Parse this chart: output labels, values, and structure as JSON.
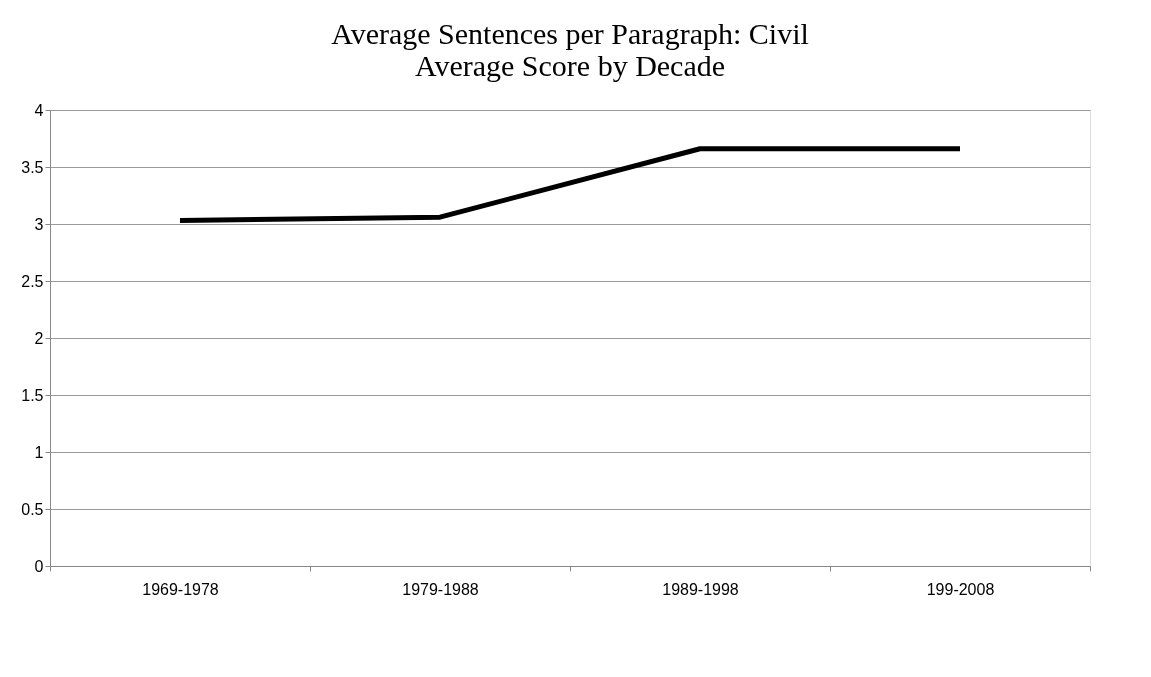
{
  "chart_data": {
    "type": "line",
    "title": [
      "Average Sentences per Paragraph:  Civil",
      "Average Score by Decade"
    ],
    "categories": [
      "1969-1978",
      "1979-1988",
      "1989-1998",
      "199-2008"
    ],
    "series": [
      {
        "color": "#000000",
        "values": [
          3.03,
          3.06,
          3.66,
          3.66
        ]
      }
    ],
    "ylim": [
      0,
      4
    ],
    "yticks": [
      0,
      0.5,
      1,
      1.5,
      2,
      2.5,
      3,
      3.5,
      4
    ],
    "grid": "y",
    "legend": false,
    "marker": "none",
    "line_style": "solid"
  }
}
